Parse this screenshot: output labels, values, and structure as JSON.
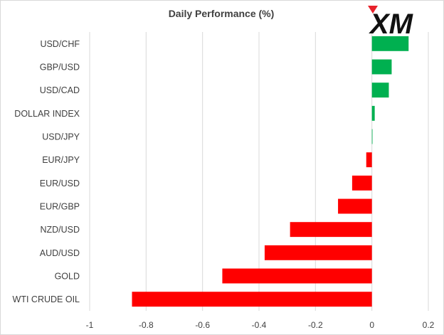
{
  "chart_data": {
    "type": "bar",
    "orientation": "horizontal",
    "title": "Daily Performance (%)",
    "categories": [
      "USD/CHF",
      "GBP/USD",
      "USD/CAD",
      "DOLLAR INDEX",
      "USD/JPY",
      "EUR/JPY",
      "EUR/USD",
      "EUR/GBP",
      "NZD/USD",
      "AUD/USD",
      "GOLD",
      "WTI CRUDE OIL"
    ],
    "values": [
      0.13,
      0.07,
      0.06,
      0.01,
      0.0,
      -0.02,
      -0.07,
      -0.12,
      -0.29,
      -0.38,
      -0.53,
      -0.85
    ],
    "xlim": [
      -1,
      0.2
    ],
    "xticks": [
      -1,
      -0.8,
      -0.6,
      -0.4,
      -0.2,
      0,
      0.2
    ],
    "xtick_labels": [
      "-1",
      "-0.8",
      "-0.6",
      "-0.4",
      "-0.2",
      "0",
      "0.2"
    ],
    "grid": "vertical",
    "legend": "none",
    "colors": {
      "positive": "#00b050",
      "negative": "#ff0000",
      "grid": "#d9d9d9",
      "text": "#404040"
    }
  },
  "logo": {
    "name": "XM",
    "text": "XM"
  }
}
